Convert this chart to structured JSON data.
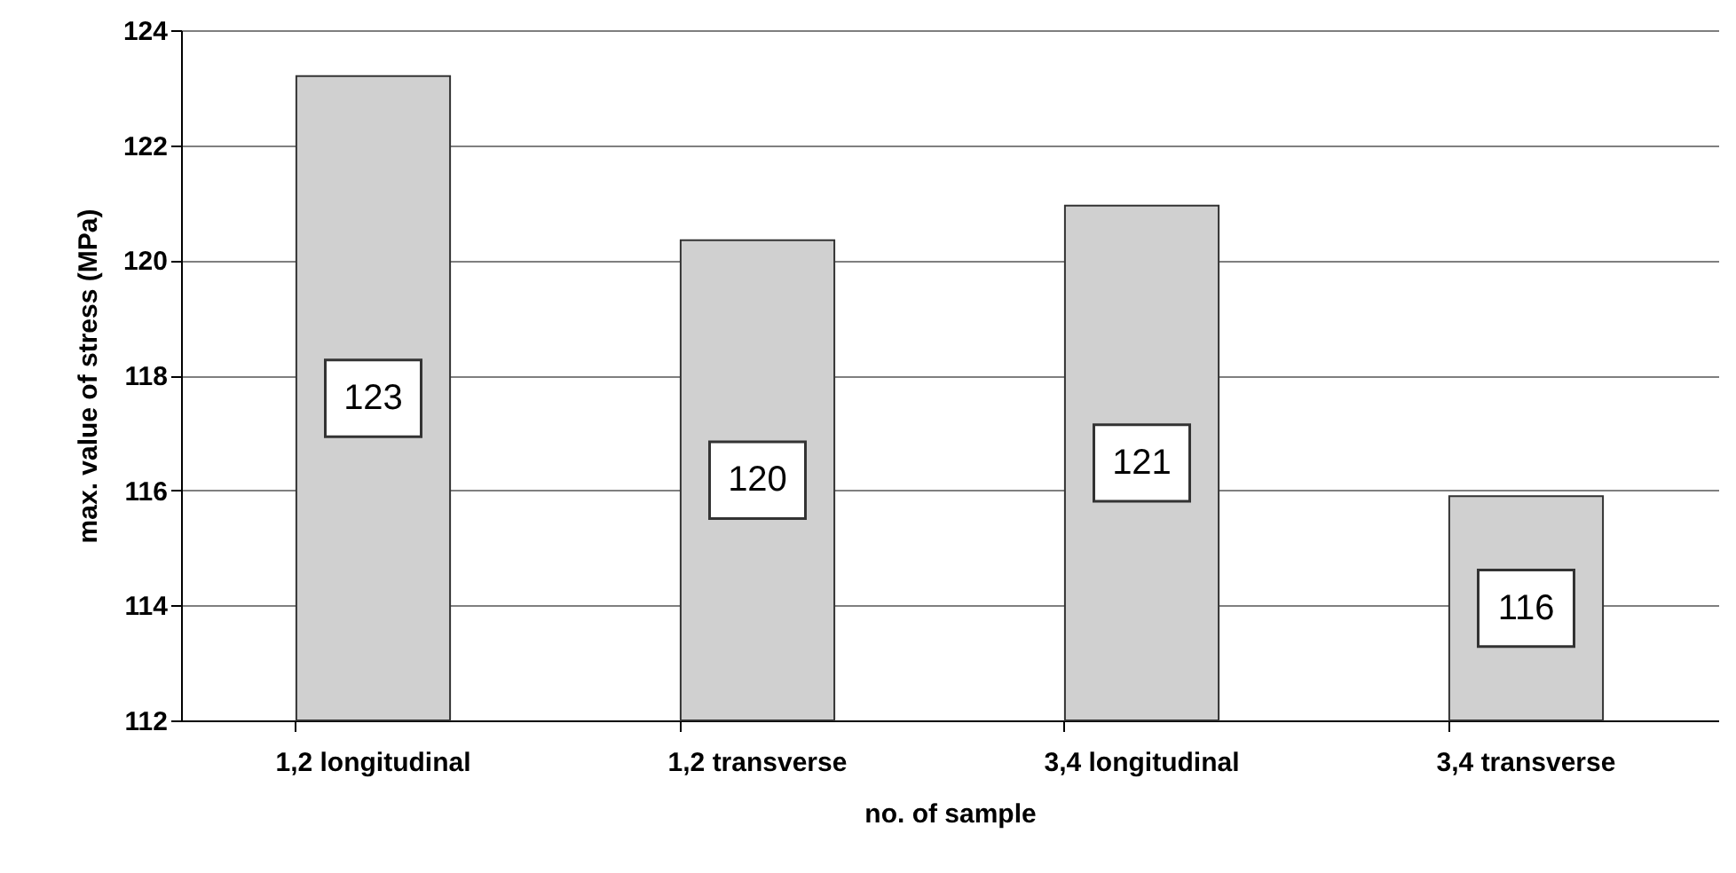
{
  "chart_data": {
    "type": "bar",
    "xlabel": "no. of sample",
    "ylabel": "max. value of stress (MPa)",
    "categories": [
      "1,2 longitudinal",
      "1,2 transverse",
      "3,4 longitudinal",
      "3,4 transverse"
    ],
    "values": [
      123.2,
      120.35,
      120.95,
      115.9
    ],
    "value_labels": [
      "123",
      "120",
      "121",
      "116"
    ],
    "color": "#d0d0d0",
    "ylim": [
      112,
      124
    ],
    "yticks": [
      112,
      114,
      116,
      118,
      120,
      122,
      124
    ],
    "grid": "y"
  }
}
